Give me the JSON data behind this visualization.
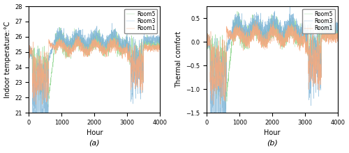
{
  "title_a": "(a)",
  "title_b": "(b)",
  "xlabel": "Hour",
  "ylabel_a": "Indoor temperature:°C",
  "ylabel_b": "Thermal comfort",
  "xlim": [
    0,
    4000
  ],
  "ylim_a": [
    21,
    28
  ],
  "ylim_b": [
    -1.5,
    0.75
  ],
  "yticks_a": [
    21,
    22,
    23,
    24,
    25,
    26,
    27,
    28
  ],
  "yticks_b": [
    -1.5,
    -1.0,
    -0.5,
    0.0,
    0.5
  ],
  "xticks": [
    0,
    1000,
    2000,
    3000,
    4000
  ],
  "legend_labels": [
    "Room1",
    "Room3",
    "Room5"
  ],
  "colors_room1": "#F5A97F",
  "colors_room3": "#7EB4D8",
  "colors_room5": "#90D890",
  "n_points": 4000,
  "figsize": [
    5.0,
    2.2
  ],
  "dpi": 100,
  "lw": 0.3
}
